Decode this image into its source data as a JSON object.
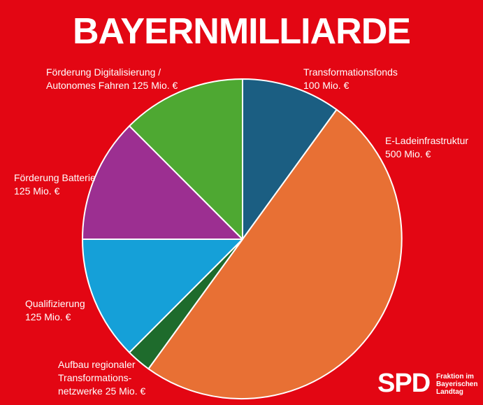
{
  "chart_data": {
    "type": "pie",
    "title": "BAYERNMILLIARDE",
    "slices": [
      {
        "label_lines": [
          "Transformationsfonds",
          "100 Mio. €"
        ],
        "value": 100,
        "color": "#1b5e82"
      },
      {
        "label_lines": [
          "E-Ladeinfrastruktur",
          "500 Mio. €"
        ],
        "value": 500,
        "color": "#e87034"
      },
      {
        "label_lines": [
          "Aufbau regionaler",
          "Transformations-",
          "netzwerke 25 Mio. €"
        ],
        "value": 25,
        "color": "#1e6b2c"
      },
      {
        "label_lines": [
          "Qualifizierung",
          "125 Mio. €"
        ],
        "value": 125,
        "color": "#15a0d8"
      },
      {
        "label_lines": [
          "Förderung Batterie",
          "125 Mio. €"
        ],
        "value": 125,
        "color": "#9c2f91"
      },
      {
        "label_lines": [
          "Förderung Digitalisierung /",
          "Autonomes Fahren 125 Mio. €"
        ],
        "value": 125,
        "color": "#4ea832"
      }
    ]
  },
  "logo": {
    "text": "SPD",
    "subtitle_lines": [
      "Fraktion im",
      "Bayerischen",
      "Landtag"
    ]
  },
  "colors": {
    "background": "#e30613",
    "text": "#ffffff"
  }
}
